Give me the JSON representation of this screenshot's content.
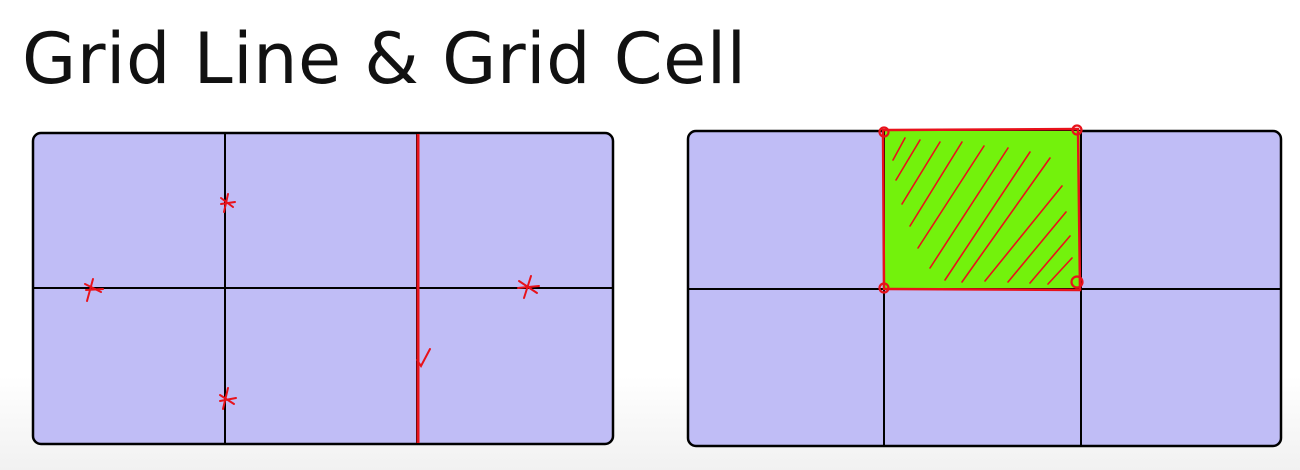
{
  "slide": {
    "title": "Grid Line & Grid Cell"
  },
  "colors": {
    "grid_fill": "#c0bdf6",
    "grid_line": "#000000",
    "annotation": "#e8121b",
    "highlight_cell": "#73f20c"
  },
  "panels": [
    {
      "name": "grid-line-example",
      "rows": 2,
      "columns": 3,
      "highlight": "vertical grid line 3, marks on lines"
    },
    {
      "name": "grid-cell-example",
      "rows": 2,
      "columns": 3,
      "highlighted_cell": {
        "row": 1,
        "column": 2
      }
    }
  ]
}
